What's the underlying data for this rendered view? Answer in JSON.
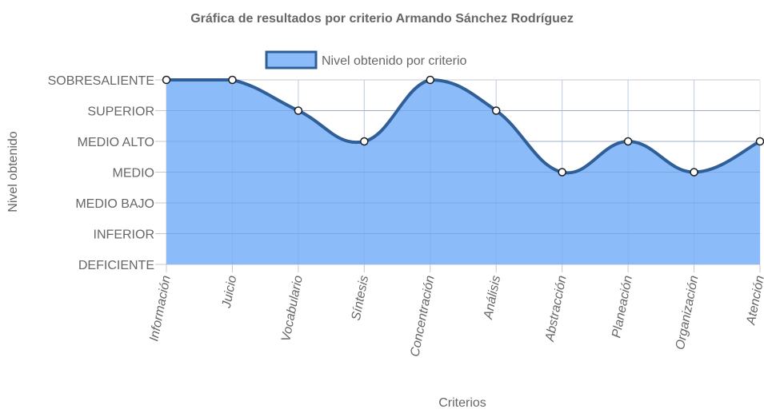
{
  "chart_data": {
    "type": "area",
    "title": "Gráfica de resultados por criterio Armando Sánchez Rodríguez",
    "xlabel": "Criterios",
    "ylabel": "Nivel obtenido",
    "categories": [
      "Información",
      "Juicio",
      "Vocabulario",
      "Síntesis",
      "Concentración",
      "Análisis",
      "Abstracción",
      "Planeación",
      "Organización",
      "Atención"
    ],
    "y_levels": [
      "DEFICIENTE",
      "INFERIOR",
      "MEDIO BAJO",
      "MEDIO",
      "MEDIO ALTO",
      "SUPERIOR",
      "SOBRESALIENTE"
    ],
    "ylim": [
      0,
      6
    ],
    "series": [
      {
        "name": "Nivel obtenido por criterio",
        "values": [
          6,
          6,
          5,
          4,
          6,
          5,
          3,
          4,
          3,
          4
        ],
        "value_labels": [
          "SOBRESALIENTE",
          "SOBRESALIENTE",
          "SUPERIOR",
          "MEDIO ALTO",
          "SOBRESALIENTE",
          "SUPERIOR",
          "MEDIO",
          "MEDIO ALTO",
          "MEDIO",
          "MEDIO ALTO"
        ]
      }
    ],
    "legend": "top",
    "grid": true,
    "colors": {
      "fill": "#8bbcf9",
      "line": "#2f5f96",
      "point_fill": "#ffffff",
      "point_stroke": "#1f1f1f"
    }
  }
}
